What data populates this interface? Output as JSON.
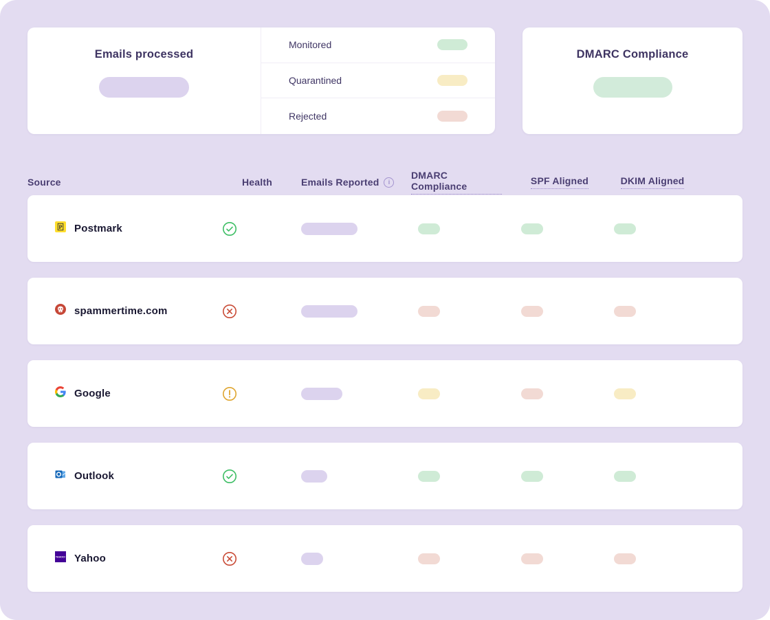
{
  "page": {
    "background": "#E3DCF1"
  },
  "summary_cards": {
    "emails_processed": {
      "title": "Emails processed",
      "value_pill_color": "#DCD3EE"
    },
    "legend_rows": [
      {
        "label": "Monitored",
        "pill_color": "#CFEBD6"
      },
      {
        "label": "Quarantined",
        "pill_color": "#F8ECC4"
      },
      {
        "label": "Rejected",
        "pill_color": "#F2DAD4"
      }
    ],
    "dmarc_compliance": {
      "title": "DMARC Compliance",
      "value_pill_color": "#D2EBDA"
    }
  },
  "table": {
    "headers": {
      "source": "Source",
      "health": "Health",
      "emails_reported": "Emails Reported",
      "emails_info_icon": "info-icon",
      "dmarc": "DMARC Compliance",
      "spf": "SPF Aligned",
      "dkim": "DKIM Aligned"
    },
    "status_colors": {
      "success": "#CFEBD6",
      "warning": "#F8ECC4",
      "danger": "#F2DAD4",
      "neutral": "#DCD3EE"
    },
    "health_colors": {
      "ok": "#3DBE64",
      "warning": "#DFA52F",
      "error": "#C94B36"
    },
    "rows": [
      {
        "source": "Postmark",
        "icon": "postmark-logo",
        "health": "ok",
        "emails_pill_width": 82,
        "dmarc": "success",
        "spf": "success",
        "dkim": "success"
      },
      {
        "source": "spammertime.com",
        "icon": "spam-skull-logo",
        "health": "error",
        "emails_pill_width": 82,
        "dmarc": "danger",
        "spf": "danger",
        "dkim": "danger"
      },
      {
        "source": "Google",
        "icon": "google-logo",
        "health": "warning",
        "emails_pill_width": 60,
        "dmarc": "warning",
        "spf": "danger",
        "dkim": "warning"
      },
      {
        "source": "Outlook",
        "icon": "outlook-logo",
        "health": "ok",
        "emails_pill_width": 38,
        "dmarc": "success",
        "spf": "success",
        "dkim": "success"
      },
      {
        "source": "Yahoo",
        "icon": "yahoo-logo",
        "health": "error",
        "emails_pill_width": 32,
        "dmarc": "danger",
        "spf": "danger",
        "dkim": "danger"
      }
    ]
  }
}
